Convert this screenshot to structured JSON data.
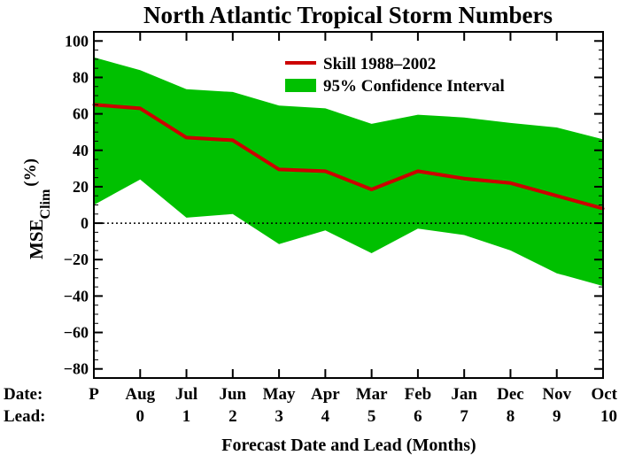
{
  "chart_data": {
    "type": "line",
    "title": "North Atlantic Tropical Storm Numbers",
    "xlabel": "Forecast Date and Lead (Months)",
    "ylabel": {
      "main": "MSE",
      "subscript": "Clim",
      "unit": "(%)"
    },
    "row_labels": {
      "date": "Date:",
      "lead": "Lead:"
    },
    "categories": [
      "P",
      "Aug",
      "Jul",
      "Jun",
      "May",
      "Apr",
      "Mar",
      "Feb",
      "Jan",
      "Dec",
      "Nov",
      "Oct"
    ],
    "leads": [
      "",
      "0",
      "1",
      "2",
      "3",
      "4",
      "5",
      "6",
      "7",
      "8",
      "9",
      "10"
    ],
    "ylim": [
      -85,
      105
    ],
    "yticks": [
      100,
      80,
      60,
      40,
      20,
      0,
      -20,
      -40,
      -60,
      -80
    ],
    "ytick_labels": [
      "100",
      "80",
      "60",
      "40",
      "20",
      "0",
      "−20",
      "−40",
      "−60",
      "−80"
    ],
    "zero_line": {
      "value": 0,
      "style": "dotted"
    },
    "series": [
      {
        "name": "Skill 1988–2002",
        "values": [
          65,
          63,
          47,
          45.5,
          29.5,
          28.5,
          18.5,
          28.5,
          24.5,
          22,
          15,
          8
        ],
        "color": "#cc0000"
      }
    ],
    "band": {
      "name": "95% Confidence Interval",
      "upper": [
        91,
        84,
        73.5,
        72,
        64.5,
        63,
        54.5,
        59.5,
        58,
        55,
        52.5,
        46
      ],
      "lower": [
        10,
        24,
        3,
        5,
        -11.5,
        -4,
        -16.5,
        -3,
        -6.5,
        -15,
        -27.5,
        -34.5
      ],
      "color": "#00c000"
    },
    "legend": {
      "position": "top-right"
    },
    "grid": false
  }
}
